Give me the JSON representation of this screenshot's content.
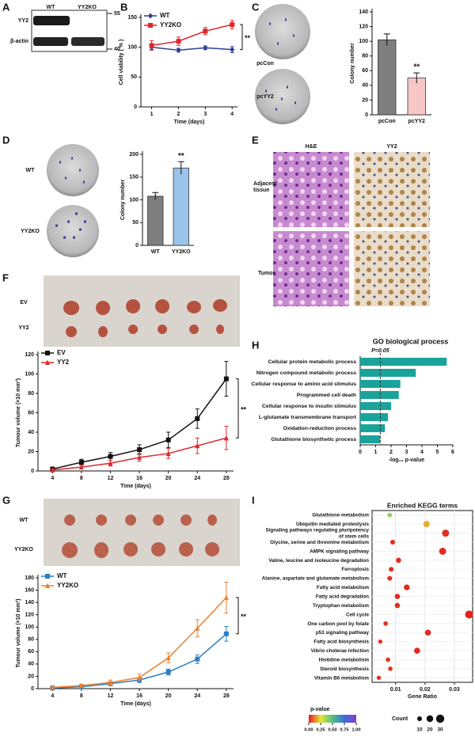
{
  "figure": {
    "panel_letters": [
      "A",
      "B",
      "C",
      "D",
      "E",
      "F",
      "G",
      "H",
      "I"
    ],
    "blot": {
      "lanes": [
        "WT",
        "YY2KO"
      ],
      "rows": [
        "YY2",
        "β-actin"
      ],
      "markers": [
        55,
        40
      ]
    },
    "colony_c": [
      "pcCon",
      "pcYY2"
    ],
    "colony_d": [
      "WT",
      "YY2KO"
    ],
    "histology": {
      "columns": [
        "H&E",
        "YY2"
      ],
      "rows": [
        "Adjacent tissue",
        "Tumor"
      ]
    },
    "tumor_f": [
      "EV",
      "YY2"
    ],
    "tumor_g": [
      "WT",
      "YY2KO"
    ]
  },
  "chart_data": [
    {
      "type": "line",
      "xlabel": "Time (days)",
      "ylabel": "Cell viability ( % )",
      "annotation": "**",
      "x": [
        1,
        2,
        3,
        4
      ],
      "xlim": [
        0.6,
        4.2
      ],
      "xticks": [
        1,
        2,
        3,
        4
      ],
      "ylim": [
        0,
        150
      ],
      "yticks": [
        0,
        50,
        100,
        150
      ],
      "series": [
        {
          "name": "WT",
          "color": "#2b3d9c",
          "marker": "diamond",
          "values": [
            100,
            95,
            99,
            96
          ],
          "errors": [
            4,
            3,
            3,
            5
          ]
        },
        {
          "name": "YY2KO",
          "color": "#e0262a",
          "marker": "square",
          "values": [
            103,
            110,
            127,
            138
          ],
          "errors": [
            8,
            7,
            6,
            7
          ]
        }
      ]
    },
    {
      "type": "bar",
      "ylabel": "Colony number",
      "annotation": "**",
      "categories": [
        "pcCon",
        "pcYY2"
      ],
      "values": [
        102,
        50
      ],
      "errors": [
        8,
        7
      ],
      "colors": [
        "#7f7f7f",
        "#f7c7c7"
      ],
      "ylim": [
        0,
        140
      ],
      "yticks": [
        0,
        20,
        40,
        60,
        80,
        100,
        120,
        140
      ]
    },
    {
      "type": "bar",
      "ylabel": "Colony number",
      "annotation": "**",
      "categories": [
        "WT",
        "YY2KO"
      ],
      "values": [
        108,
        170
      ],
      "errors": [
        8,
        14
      ],
      "colors": [
        "#7f7f7f",
        "#9cc3ea"
      ],
      "ylim": [
        0,
        200
      ],
      "yticks": [
        0,
        50,
        100,
        150,
        200
      ]
    },
    {
      "type": "line",
      "xlabel": "Time (days)",
      "ylabel": "Tumour volume (×10 mm³)",
      "annotation": "**",
      "x": [
        4,
        8,
        12,
        16,
        20,
        24,
        28
      ],
      "xlim": [
        2,
        29
      ],
      "xticks": [
        4,
        8,
        12,
        16,
        20,
        24,
        28
      ],
      "ylim": [
        0,
        120
      ],
      "yticks": [
        0,
        20,
        40,
        60,
        80,
        100,
        120
      ],
      "series": [
        {
          "name": "EV",
          "color": "#111111",
          "marker": "square",
          "values": [
            2,
            9,
            15,
            22,
            32,
            54,
            95
          ],
          "errors": [
            2,
            3,
            4,
            5,
            8,
            10,
            18
          ]
        },
        {
          "name": "YY2",
          "color": "#e0262a",
          "marker": "triangle",
          "values": [
            1,
            4,
            8,
            14,
            18,
            26,
            34
          ],
          "errors": [
            1,
            2,
            3,
            4,
            5,
            8,
            12
          ]
        }
      ]
    },
    {
      "type": "line",
      "xlabel": "Time (days)",
      "ylabel": "Tumour volume (×10 mm³)",
      "annotation": "**",
      "x": [
        4,
        8,
        12,
        16,
        20,
        24,
        28
      ],
      "xlim": [
        2,
        29
      ],
      "xticks": [
        4,
        8,
        12,
        16,
        20,
        24,
        28
      ],
      "ylim": [
        0,
        180
      ],
      "yticks": [
        0,
        20,
        40,
        60,
        80,
        100,
        120,
        140,
        160,
        180
      ],
      "series": [
        {
          "name": "WT",
          "color": "#2a7fc2",
          "marker": "square",
          "values": [
            1,
            3,
            8,
            14,
            27,
            48,
            89
          ],
          "errors": [
            1,
            2,
            3,
            4,
            5,
            7,
            12
          ]
        },
        {
          "name": "YY2KO",
          "color": "#f07f2a",
          "marker": "triangle",
          "values": [
            2,
            5,
            10,
            18,
            50,
            98,
            148
          ],
          "errors": [
            1,
            2,
            4,
            6,
            8,
            14,
            25
          ]
        }
      ]
    },
    {
      "type": "hbar",
      "title": "GO biological process",
      "xlabel": "-log₁₀ p-value",
      "color": "#1aa39a",
      "categories": [
        "Cellular protein metabolic process",
        "Nitrogen compound metabolic process",
        "Cellular response to amino acid stimulus",
        "Programmed cell death",
        "Cellular response to insulin stimulus",
        "L-glutamate transmembrane transport",
        "Oxidation-reduction process",
        "Glutathione biosynthetic process"
      ],
      "values": [
        5.6,
        3.6,
        2.6,
        2.5,
        2.0,
        1.8,
        1.6,
        1.3
      ],
      "xlim": [
        0,
        6
      ],
      "xticks": [
        0,
        1,
        2,
        3,
        4,
        5,
        6
      ],
      "threshold": {
        "value": 1.3,
        "label": "P=0.05"
      }
    },
    {
      "type": "dot",
      "title": "Enriched KEGG terms",
      "xlabel": "Gene Ratio",
      "categories": [
        "Glutathione metabolism",
        "Ubiquitin mediated proteolysis",
        "Signaling pathways regulating pluripotency of stem cells",
        "Glycine, serine and threonine metabolism",
        "AMPK signaling pathway",
        "Valine, leucine and isoleucine degradation",
        "Ferroptosis",
        "Alanine, aspartate and glutamate metabolism",
        "Fatty acid metabolism",
        "Fatty acid degradation",
        "Tryptophan metabolism",
        "Cell cycle",
        "One carbon pool by folate",
        "p53 signaling pathway",
        "Fatty acid biosynthesis",
        "Vibrio cholerae infection",
        "Histidine metabolism",
        "Steroid biosynthesis",
        "Vitamin B6 metabolism"
      ],
      "values": [
        0.008,
        0.0205,
        0.027,
        0.009,
        0.026,
        0.011,
        0.0085,
        0.008,
        0.0138,
        0.0106,
        0.0106,
        0.035,
        0.0066,
        0.021,
        0.0048,
        0.0173,
        0.0074,
        0.0082,
        0.0043
      ],
      "pvalues": [
        0.4,
        0.18,
        0.02,
        0.02,
        0.02,
        0.02,
        0.02,
        0.02,
        0.02,
        0.02,
        0.02,
        0.01,
        0.03,
        0.02,
        0.03,
        0.02,
        0.03,
        0.03,
        0.03
      ],
      "counts": [
        9,
        18,
        22,
        10,
        22,
        12,
        10,
        10,
        15,
        12,
        12,
        28,
        9,
        16,
        8,
        16,
        9,
        9,
        8
      ],
      "xlim": [
        0.002,
        0.0362
      ],
      "xticks": [
        0.01,
        0.02,
        0.03
      ],
      "color_legend_title": "p-value",
      "clim": [
        0,
        1
      ],
      "cticks": [
        {
          "value": 0,
          "label": "0.00"
        },
        {
          "value": 0.25,
          "label": "0.25"
        },
        {
          "value": 0.5,
          "label": "0.50"
        },
        {
          "value": 0.75,
          "label": "0.75"
        },
        {
          "value": 1,
          "label": "1.00"
        }
      ],
      "size_legend_title": "Count",
      "size_legend": [
        10,
        20,
        30
      ]
    }
  ]
}
